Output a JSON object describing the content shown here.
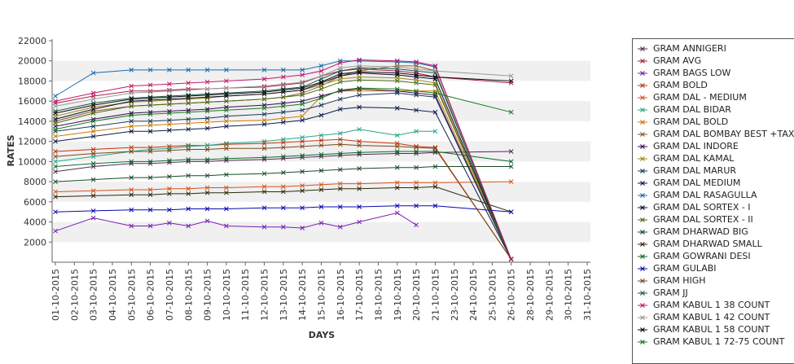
{
  "chart_data": {
    "type": "line",
    "xlabel": "DAYS",
    "ylabel": "RATES",
    "ylim": [
      0,
      22000
    ],
    "yticks": [
      2000,
      4000,
      6000,
      8000,
      10000,
      12000,
      14000,
      16000,
      18000,
      20000,
      22000
    ],
    "x": [
      "01-10-2015",
      "02-10-2015",
      "03-10-2015",
      "04-10-2015",
      "05-10-2015",
      "06-10-2015",
      "07-10-2015",
      "08-10-2015",
      "09-10-2015",
      "10-10-2015",
      "11-10-2015",
      "12-10-2015",
      "13-10-2015",
      "14-10-2015",
      "15-10-2015",
      "16-10-2015",
      "17-10-2015",
      "18-10-2015",
      "19-10-2015",
      "20-10-2015",
      "21-10-2015",
      "23-10-2015",
      "24-10-2015",
      "25-10-2015",
      "26-10-2015",
      "28-10-2015",
      "29-10-2015",
      "30-10-2015",
      "31-10-2015"
    ],
    "grid": "horizontal bands",
    "legend_position": "right",
    "series": [
      {
        "name": "GRAM ANNIGERI",
        "color": "#552a55",
        "values": [
          9000,
          null,
          9500,
          null,
          9800,
          9800,
          9900,
          10000,
          10000,
          10100,
          null,
          10200,
          10300,
          10400,
          10500,
          10600,
          10700,
          null,
          10800,
          10800,
          10900,
          null,
          null,
          null,
          11000,
          null,
          null,
          null,
          null
        ]
      },
      {
        "name": "GRAM AVG",
        "color": "#aa1f44",
        "values": [
          15800,
          null,
          16500,
          null,
          17000,
          17000,
          17100,
          17200,
          17200,
          17300,
          null,
          17400,
          17600,
          17800,
          18500,
          19000,
          19200,
          null,
          19000,
          18800,
          18400,
          null,
          null,
          null,
          17800,
          null,
          null,
          null,
          null
        ]
      },
      {
        "name": "GRAM BAGS LOW",
        "color": "#7a1fb0",
        "values": [
          3100,
          null,
          4400,
          null,
          3600,
          3600,
          3900,
          3600,
          4100,
          3600,
          null,
          3500,
          3500,
          3400,
          3900,
          3500,
          4000,
          null,
          4900,
          3700,
          null,
          null,
          null,
          null,
          null,
          null,
          null,
          null,
          null
        ]
      },
      {
        "name": "GRAM BOLD",
        "color": "#c4320a",
        "values": [
          11000,
          null,
          11200,
          null,
          11400,
          11400,
          11500,
          11600,
          11600,
          11700,
          null,
          11800,
          11900,
          12000,
          12100,
          12200,
          12000,
          null,
          11800,
          11500,
          11400,
          null,
          null,
          null,
          300,
          null,
          null,
          null,
          null
        ]
      },
      {
        "name": "GRAM DAL - MEDIUM",
        "color": "#d4541c",
        "values": [
          7000,
          null,
          7100,
          null,
          7200,
          7200,
          7300,
          7300,
          7400,
          7400,
          null,
          7500,
          7500,
          7600,
          7700,
          7800,
          7800,
          null,
          7900,
          7900,
          7900,
          null,
          null,
          null,
          8000,
          null,
          null,
          null,
          null
        ]
      },
      {
        "name": "GRAM DAL BIDAR",
        "color": "#27a58a",
        "values": [
          10000,
          null,
          10500,
          null,
          11000,
          11200,
          11300,
          11500,
          11600,
          11800,
          null,
          12000,
          12200,
          12400,
          12600,
          12800,
          13200,
          null,
          12600,
          13000,
          13000,
          null,
          null,
          null,
          null,
          null,
          null,
          null,
          null
        ]
      },
      {
        "name": "GRAM DAL BOLD",
        "color": "#cc7a00",
        "values": [
          12500,
          null,
          13000,
          null,
          13500,
          13600,
          13700,
          13800,
          13900,
          14000,
          null,
          14100,
          14300,
          14500,
          16500,
          17000,
          17000,
          null,
          17000,
          17000,
          17000,
          null,
          null,
          null,
          300,
          null,
          null,
          null,
          null
        ]
      },
      {
        "name": "GRAM DAL BOMBAY BEST +TAX",
        "color": "#8a5a2a",
        "values": [
          14000,
          null,
          15000,
          null,
          15500,
          15600,
          15700,
          15800,
          15900,
          16000,
          null,
          16200,
          16400,
          16800,
          17500,
          18500,
          19000,
          null,
          19500,
          19500,
          19000,
          null,
          null,
          null,
          300,
          null,
          null,
          null,
          null
        ]
      },
      {
        "name": "GRAM DAL INDORE",
        "color": "#3a0a5a",
        "values": [
          13500,
          null,
          14200,
          null,
          14800,
          14900,
          15000,
          15100,
          15200,
          15400,
          null,
          15600,
          15800,
          16000,
          16500,
          17000,
          17200,
          null,
          17000,
          16800,
          16600,
          null,
          null,
          null,
          300,
          null,
          null,
          null,
          null
        ]
      },
      {
        "name": "GRAM DAL KAMAL",
        "color": "#a08a18",
        "values": [
          14500,
          null,
          15400,
          null,
          15900,
          16000,
          16100,
          16200,
          16300,
          16500,
          null,
          16700,
          16900,
          17100,
          17600,
          18200,
          18400,
          null,
          18300,
          18100,
          17800,
          null,
          null,
          null,
          300,
          null,
          null,
          null,
          null
        ]
      },
      {
        "name": "GRAM DAL MARUR",
        "color": "#1a3a5a",
        "values": [
          13000,
          null,
          13500,
          null,
          14000,
          14000,
          14100,
          14200,
          14300,
          14500,
          null,
          14700,
          14900,
          15100,
          15600,
          16200,
          16600,
          null,
          16800,
          16600,
          16400,
          null,
          null,
          null,
          300,
          null,
          null,
          null,
          null
        ]
      },
      {
        "name": "GRAM DAL MEDIUM",
        "color": "#0a1a4a",
        "values": [
          12000,
          null,
          12500,
          null,
          13000,
          13000,
          13100,
          13200,
          13300,
          13500,
          null,
          13700,
          13900,
          14100,
          14600,
          15200,
          15400,
          null,
          15300,
          15100,
          14900,
          null,
          null,
          null,
          300,
          null,
          null,
          null,
          null
        ]
      },
      {
        "name": "GRAM DAL RASAGULLA",
        "color": "#1a6aaa",
        "values": [
          16500,
          null,
          18800,
          null,
          19100,
          19100,
          19100,
          19100,
          19100,
          19100,
          null,
          19100,
          19100,
          19100,
          19500,
          20000,
          20000,
          null,
          19900,
          19800,
          19400,
          null,
          null,
          null,
          300,
          null,
          null,
          null,
          null
        ]
      },
      {
        "name": "GRAM DAL SORTEX - I",
        "color": "#0a0a2a",
        "values": [
          14200,
          null,
          15200,
          null,
          16000,
          16100,
          16200,
          16300,
          16400,
          16500,
          null,
          16700,
          16900,
          17100,
          17800,
          18500,
          18800,
          null,
          18600,
          18400,
          18200,
          null,
          null,
          null,
          300,
          null,
          null,
          null,
          null
        ]
      },
      {
        "name": "GRAM DAL SORTEX - II",
        "color": "#4a6a1a",
        "values": [
          13800,
          null,
          14800,
          null,
          15500,
          15600,
          15700,
          15800,
          15900,
          16000,
          null,
          16200,
          16400,
          16600,
          17200,
          17900,
          18100,
          null,
          18000,
          17800,
          17600,
          null,
          null,
          null,
          300,
          null,
          null,
          null,
          null
        ]
      },
      {
        "name": "GRAM DHARWAD BIG",
        "color": "#1a4a2a",
        "values": [
          8000,
          null,
          8200,
          null,
          8400,
          8400,
          8500,
          8600,
          8600,
          8700,
          null,
          8800,
          8900,
          9000,
          9100,
          9200,
          9300,
          null,
          9400,
          9400,
          9500,
          null,
          null,
          null,
          9500,
          null,
          null,
          null,
          null
        ]
      },
      {
        "name": "GRAM DHARWAD SMALL",
        "color": "#2a2a0a",
        "values": [
          6500,
          null,
          6600,
          null,
          6700,
          6700,
          6800,
          6800,
          6900,
          6900,
          null,
          7000,
          7000,
          7100,
          7200,
          7300,
          7300,
          null,
          7400,
          7400,
          7500,
          null,
          null,
          null,
          5000,
          null,
          null,
          null,
          null
        ]
      },
      {
        "name": "GRAM GOWRANI DESI",
        "color": "#0a6a2a",
        "values": [
          9500,
          null,
          9800,
          null,
          10000,
          10000,
          10100,
          10200,
          10200,
          10300,
          null,
          10400,
          10500,
          10600,
          10700,
          10800,
          10900,
          null,
          11000,
          11000,
          11000,
          null,
          null,
          null,
          10000,
          null,
          null,
          null,
          null
        ]
      },
      {
        "name": "GRAM GULABI",
        "color": "#0a0aaa",
        "values": [
          5000,
          null,
          5100,
          null,
          5200,
          5200,
          5200,
          5300,
          5300,
          5300,
          null,
          5400,
          5400,
          5400,
          5500,
          5500,
          5500,
          null,
          5600,
          5600,
          5600,
          null,
          null,
          null,
          5000,
          null,
          null,
          null,
          null
        ]
      },
      {
        "name": "GRAM HIGH",
        "color": "#7a4a1a",
        "values": [
          10500,
          null,
          10800,
          null,
          11000,
          11000,
          11100,
          11200,
          11200,
          11300,
          null,
          11300,
          11400,
          11500,
          11600,
          11700,
          11600,
          null,
          11500,
          11400,
          11300,
          null,
          null,
          null,
          300,
          null,
          null,
          null,
          null
        ]
      },
      {
        "name": "GRAM JJ",
        "color": "#1a5a4a",
        "values": [
          15000,
          null,
          15800,
          null,
          16300,
          16400,
          16500,
          16600,
          16700,
          16800,
          null,
          17000,
          17200,
          17400,
          18200,
          19000,
          19300,
          null,
          19200,
          19000,
          18800,
          null,
          null,
          null,
          300,
          null,
          null,
          null,
          null
        ]
      },
      {
        "name": "GRAM KABUL 1 38 COUNT",
        "color": "#c0186a",
        "values": [
          16000,
          null,
          16800,
          null,
          17500,
          17600,
          17700,
          17800,
          17900,
          18000,
          null,
          18200,
          18400,
          18600,
          19000,
          19800,
          20100,
          null,
          20000,
          19900,
          19500,
          null,
          null,
          null,
          300,
          null,
          null,
          null,
          null
        ]
      },
      {
        "name": "GRAM KABUL 1 42 COUNT",
        "color": "#9a9a9a",
        "values": [
          15500,
          null,
          16200,
          null,
          16800,
          16900,
          17000,
          17100,
          17200,
          17300,
          null,
          17500,
          17700,
          17900,
          18500,
          19300,
          19500,
          null,
          19400,
          19200,
          19000,
          null,
          null,
          null,
          18500,
          null,
          null,
          null,
          null
        ]
      },
      {
        "name": "GRAM KABUL 1 58 COUNT",
        "color": "#0a0a0a",
        "values": [
          14800,
          null,
          15600,
          null,
          16200,
          16300,
          16400,
          16500,
          16600,
          16700,
          null,
          16900,
          17100,
          17300,
          17900,
          18700,
          18900,
          null,
          18800,
          18600,
          18400,
          null,
          null,
          null,
          18000,
          null,
          null,
          null,
          null
        ]
      },
      {
        "name": "GRAM KABUL 1 72-75 COUNT",
        "color": "#1a7a1a",
        "values": [
          13200,
          null,
          14000,
          null,
          14600,
          14700,
          14800,
          14900,
          15000,
          15100,
          null,
          15300,
          15500,
          15700,
          16300,
          17100,
          17300,
          null,
          17200,
          17000,
          16800,
          null,
          null,
          null,
          14900,
          null,
          null,
          null,
          null
        ]
      }
    ]
  }
}
